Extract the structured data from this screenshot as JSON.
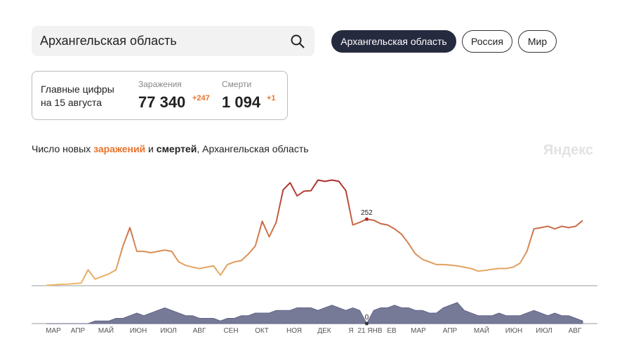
{
  "search": {
    "query": "Архангельская область"
  },
  "tabs": [
    "Архангельская область",
    "Россия",
    "Мир"
  ],
  "summary": {
    "title_line1": "Главные цифры",
    "title_line2": "на 15 августа",
    "cases": {
      "label": "Заражения",
      "value": "77 340",
      "delta": "+247"
    },
    "deaths": {
      "label": "Смерти",
      "value": "1 094",
      "delta": "+1"
    }
  },
  "chart_heading": {
    "prefix": "Число новых ",
    "cases": "заражений",
    "middle": " и ",
    "deaths": "смертей",
    "suffix": ", Архангельская область"
  },
  "brand": "Яндекс",
  "x_axis_labels": [
    "МАР",
    "АПР",
    "МАЙ",
    "ИЮН",
    "ИЮЛ",
    "АВГ",
    "СЕН",
    "ОКТ",
    "НОЯ",
    "ДЕК",
    "Я",
    "21 ЯНВ",
    "ЕВ",
    "МАР",
    "АПР",
    "МАЙ",
    "ИЮН",
    "ИЮЛ",
    "АВГ"
  ],
  "chart_data": [
    {
      "type": "line",
      "color_low": "#eebb6a",
      "color_high": "#a8282a",
      "ylim": [
        0,
        420
      ],
      "values": [
        2,
        3,
        5,
        6,
        8,
        10,
        60,
        25,
        35,
        45,
        60,
        150,
        220,
        130,
        130,
        125,
        130,
        135,
        130,
        90,
        77,
        70,
        65,
        70,
        75,
        40,
        80,
        90,
        95,
        120,
        150,
        244,
        185,
        240,
        363,
        390,
        340,
        358,
        360,
        400,
        395,
        400,
        395,
        360,
        230,
        240,
        252,
        248,
        235,
        230,
        215,
        195,
        160,
        120,
        100,
        90,
        80,
        80,
        78,
        75,
        70,
        65,
        55,
        58,
        62,
        65,
        65,
        70,
        85,
        130,
        215,
        220,
        225,
        215,
        225,
        220,
        225,
        247
      ],
      "value_labels": [
        null,
        null,
        null,
        null,
        null,
        null,
        null,
        null,
        null,
        null,
        null,
        null,
        null,
        null,
        null,
        null,
        null,
        null,
        null,
        null,
        null,
        null,
        null,
        null,
        null,
        null,
        null,
        null,
        null,
        null,
        null,
        null,
        null,
        null,
        null,
        null,
        null,
        null,
        null,
        null,
        null,
        null,
        null,
        null,
        null,
        null,
        "252",
        null,
        null,
        null,
        null,
        null,
        null,
        null,
        null,
        null,
        null,
        null,
        null,
        null,
        null,
        null,
        null,
        null,
        null,
        null,
        null,
        null,
        null,
        null,
        null,
        null,
        null,
        null,
        null,
        null,
        null,
        null
      ]
    },
    {
      "type": "area",
      "color": "#5f6385",
      "ylim": [
        0,
        12
      ],
      "values": [
        0,
        0,
        0,
        0,
        0,
        0,
        0,
        1,
        1,
        1,
        2,
        2,
        3,
        4,
        3,
        4,
        5,
        6,
        5,
        4,
        3,
        3,
        2,
        2,
        2,
        1,
        2,
        2,
        3,
        3,
        4,
        4,
        4,
        5,
        5,
        5,
        6,
        6,
        6,
        5,
        6,
        7,
        6,
        5,
        6,
        5,
        0,
        5,
        6,
        6,
        7,
        6,
        6,
        5,
        5,
        4,
        4,
        6,
        7,
        8,
        5,
        4,
        3,
        3,
        3,
        4,
        3,
        3,
        3,
        4,
        5,
        4,
        3,
        4,
        3,
        3,
        2,
        1
      ],
      "value_labels": [
        null,
        null,
        null,
        null,
        null,
        null,
        null,
        null,
        null,
        null,
        null,
        null,
        null,
        null,
        null,
        null,
        null,
        null,
        null,
        null,
        null,
        null,
        null,
        null,
        null,
        null,
        null,
        null,
        null,
        null,
        null,
        null,
        null,
        null,
        null,
        null,
        null,
        null,
        null,
        null,
        null,
        null,
        null,
        null,
        null,
        null,
        "0",
        null,
        null,
        null,
        null,
        null,
        null,
        null,
        null,
        null,
        null,
        null,
        null,
        null,
        null,
        null,
        null,
        null,
        null,
        null,
        null,
        null,
        null,
        null,
        null,
        null,
        null,
        null,
        null,
        null,
        null,
        null
      ]
    }
  ]
}
